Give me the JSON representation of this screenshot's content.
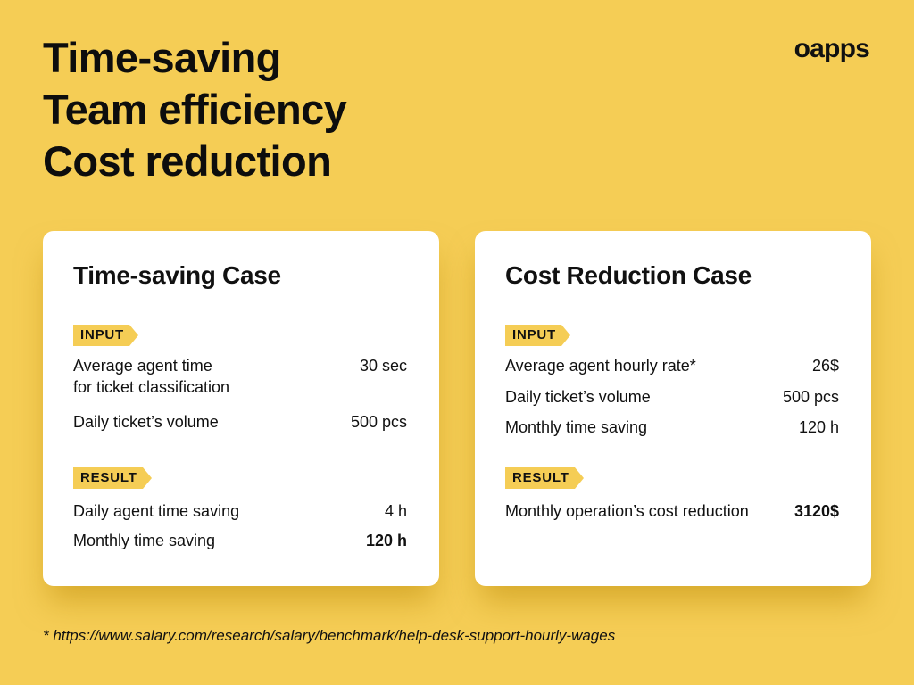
{
  "headline": [
    "Time-saving",
    "Team efficiency",
    "Cost reduction"
  ],
  "brand": "oapps",
  "colors": {
    "background": "#F5CD55",
    "tag": "#F5CD55",
    "card": "#FFFFFF",
    "text": "#111111"
  },
  "time_case": {
    "title": "Time-saving Case",
    "input_tag": "INPUT",
    "inputs": [
      {
        "label": "Average agent time\nfor ticket classification",
        "value": "30 sec"
      },
      {
        "label": "Daily ticket’s volume",
        "value": "500 pcs"
      }
    ],
    "result_tag": "RESULT",
    "results": [
      {
        "label": "Daily agent time saving",
        "value": "4 h"
      },
      {
        "label": "Monthly time saving",
        "value": "120 h"
      }
    ]
  },
  "cost_case": {
    "title": "Cost Reduction Case",
    "input_tag": "INPUT",
    "inputs": [
      {
        "label": "Average agent hourly rate*",
        "value": "26$"
      },
      {
        "label": "Daily ticket’s volume",
        "value": "500 pcs"
      },
      {
        "label": "Monthly time saving",
        "value": "120 h"
      }
    ],
    "result_tag": "RESULT",
    "results": [
      {
        "label": "Monthly operation’s cost reduction",
        "value": "3120$"
      }
    ]
  },
  "footnote": "* https://www.salary.com/research/salary/benchmark/help-desk-support-hourly-wages"
}
